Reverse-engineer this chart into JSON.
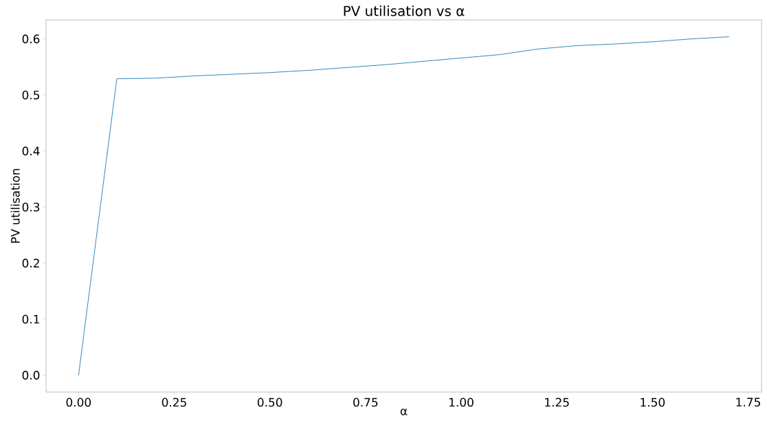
{
  "chart_data": {
    "type": "line",
    "title": "PV utilisation vs α",
    "xlabel": "α",
    "ylabel": "PV utilisation",
    "x": [
      0,
      0.1,
      0.2,
      0.3,
      0.4,
      0.5,
      0.6,
      0.7,
      0.8,
      0.9,
      1.0,
      1.1,
      1.2,
      1.3,
      1.4,
      1.5,
      1.6,
      1.7
    ],
    "values": [
      0,
      0.529,
      0.53,
      0.534,
      0.537,
      0.54,
      0.544,
      0.549,
      0.554,
      0.56,
      0.566,
      0.572,
      0.582,
      0.588,
      0.591,
      0.595,
      0.6,
      0.604
    ],
    "color": "#1f77b4",
    "xlim": [
      -0.085,
      1.785
    ],
    "ylim": [
      -0.03,
      0.634
    ],
    "xticks": [
      {
        "value": 0,
        "label": "0.00"
      },
      0.25,
      {
        "value": 0.5,
        "label": "0.50"
      },
      0.75,
      {
        "value": 1,
        "label": "1.00"
      },
      1.25,
      {
        "value": 1.5,
        "label": "1.50"
      },
      1.75
    ],
    "yticks": [
      {
        "value": 0,
        "label": "0.0"
      },
      0.1,
      0.2,
      0.3,
      0.4,
      0.5,
      0.6
    ],
    "grid": false
  }
}
